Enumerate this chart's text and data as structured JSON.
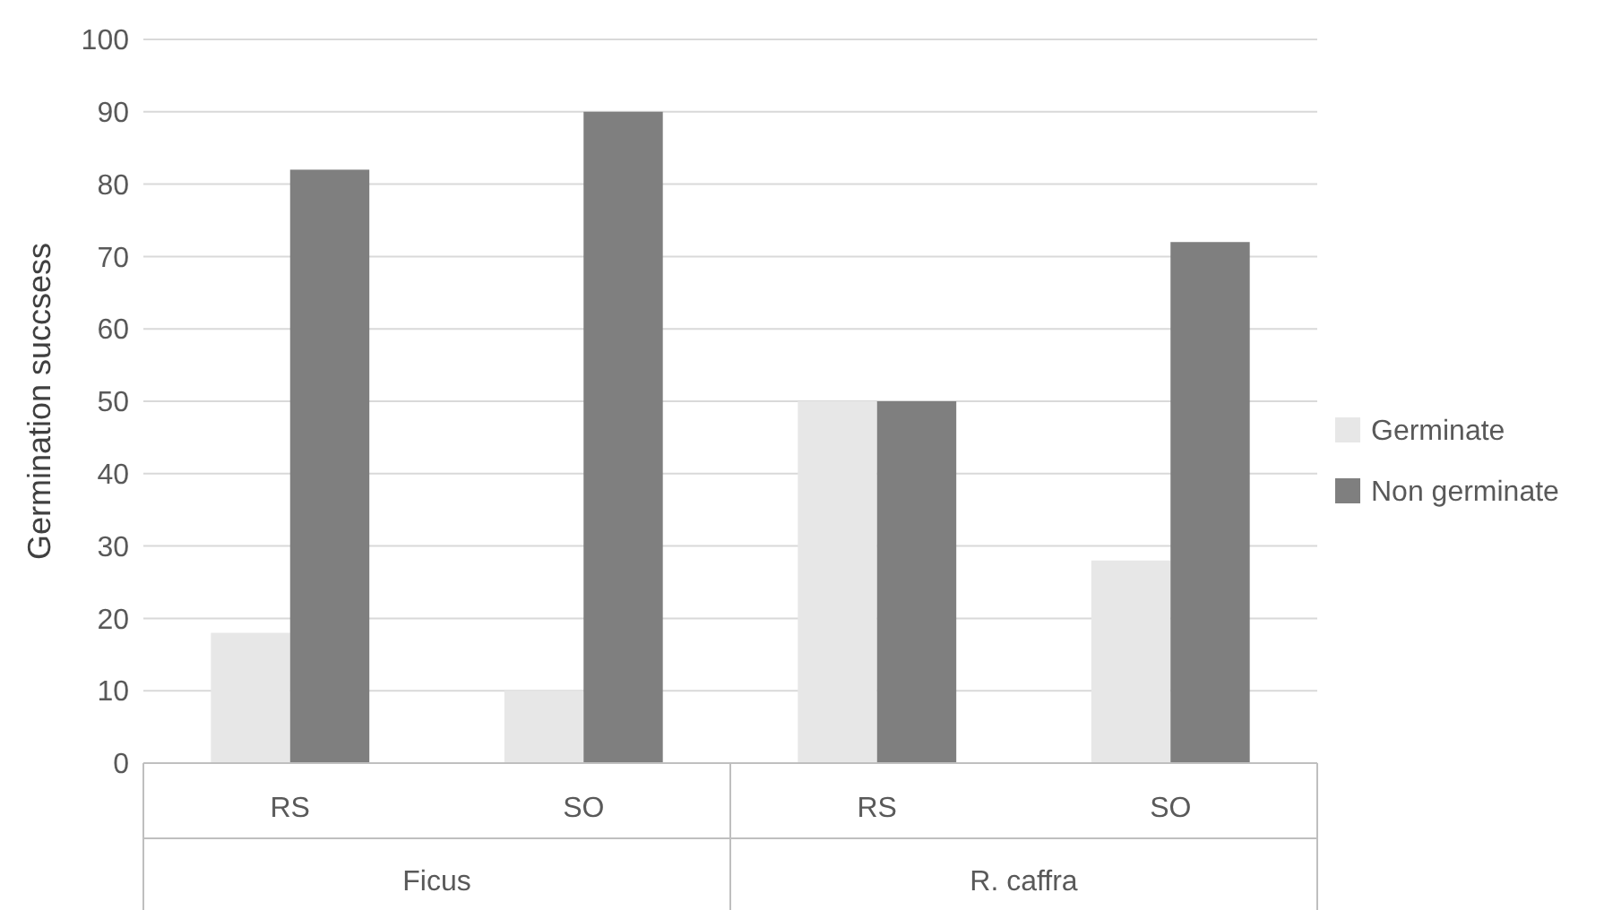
{
  "chart_data": {
    "type": "bar",
    "ylabel": "Germination  succsess",
    "categories": [
      "RS",
      "SO",
      "RS",
      "SO"
    ],
    "series": [
      {
        "name": "Germinate",
        "color": "#e7e7e7",
        "values": [
          18,
          10,
          50,
          28
        ]
      },
      {
        "name": "Non germinate",
        "color": "#7f7f7f",
        "values": [
          82,
          90,
          50,
          72
        ]
      }
    ],
    "ylim": [
      0,
      100
    ],
    "yticks": [
      0,
      10,
      20,
      30,
      40,
      50,
      60,
      70,
      80,
      90,
      100
    ],
    "grid": "y",
    "legend": "right",
    "annotations": [
      "Ficus",
      "R. caffra"
    ]
  }
}
